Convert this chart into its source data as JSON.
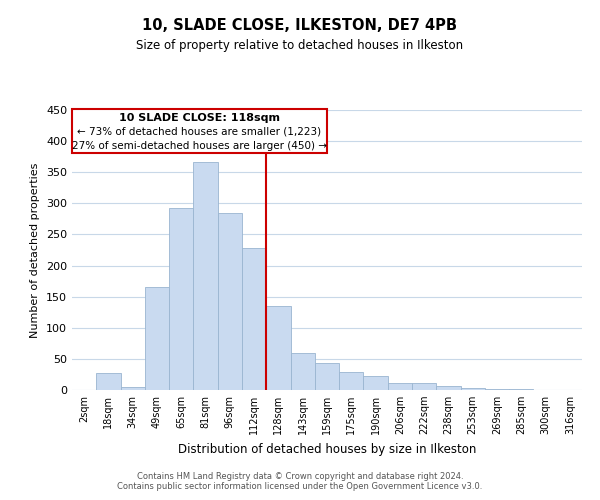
{
  "title": "10, SLADE CLOSE, ILKESTON, DE7 4PB",
  "subtitle": "Size of property relative to detached houses in Ilkeston",
  "xlabel": "Distribution of detached houses by size in Ilkeston",
  "ylabel": "Number of detached properties",
  "bar_labels": [
    "2sqm",
    "18sqm",
    "34sqm",
    "49sqm",
    "65sqm",
    "81sqm",
    "96sqm",
    "112sqm",
    "128sqm",
    "143sqm",
    "159sqm",
    "175sqm",
    "190sqm",
    "206sqm",
    "222sqm",
    "238sqm",
    "253sqm",
    "269sqm",
    "285sqm",
    "300sqm",
    "316sqm"
  ],
  "bar_values": [
    0,
    28,
    5,
    166,
    292,
    367,
    285,
    228,
    135,
    60,
    43,
    29,
    22,
    11,
    11,
    6,
    4,
    2,
    1,
    0,
    0
  ],
  "bar_color": "#c9daf0",
  "bar_edge_color": "#9ab5d0",
  "vline_color": "#cc0000",
  "vline_x": 7.5,
  "annotation_title": "10 SLADE CLOSE: 118sqm",
  "annotation_line1": "← 73% of detached houses are smaller (1,223)",
  "annotation_line2": "27% of semi-detached houses are larger (450) →",
  "annotation_box_color": "#ffffff",
  "annotation_box_edge": "#cc0000",
  "ylim": [
    0,
    450
  ],
  "yticks": [
    0,
    50,
    100,
    150,
    200,
    250,
    300,
    350,
    400,
    450
  ],
  "footer1": "Contains HM Land Registry data © Crown copyright and database right 2024.",
  "footer2": "Contains public sector information licensed under the Open Government Licence v3.0.",
  "bg_color": "#ffffff",
  "grid_color": "#c8d8e8"
}
